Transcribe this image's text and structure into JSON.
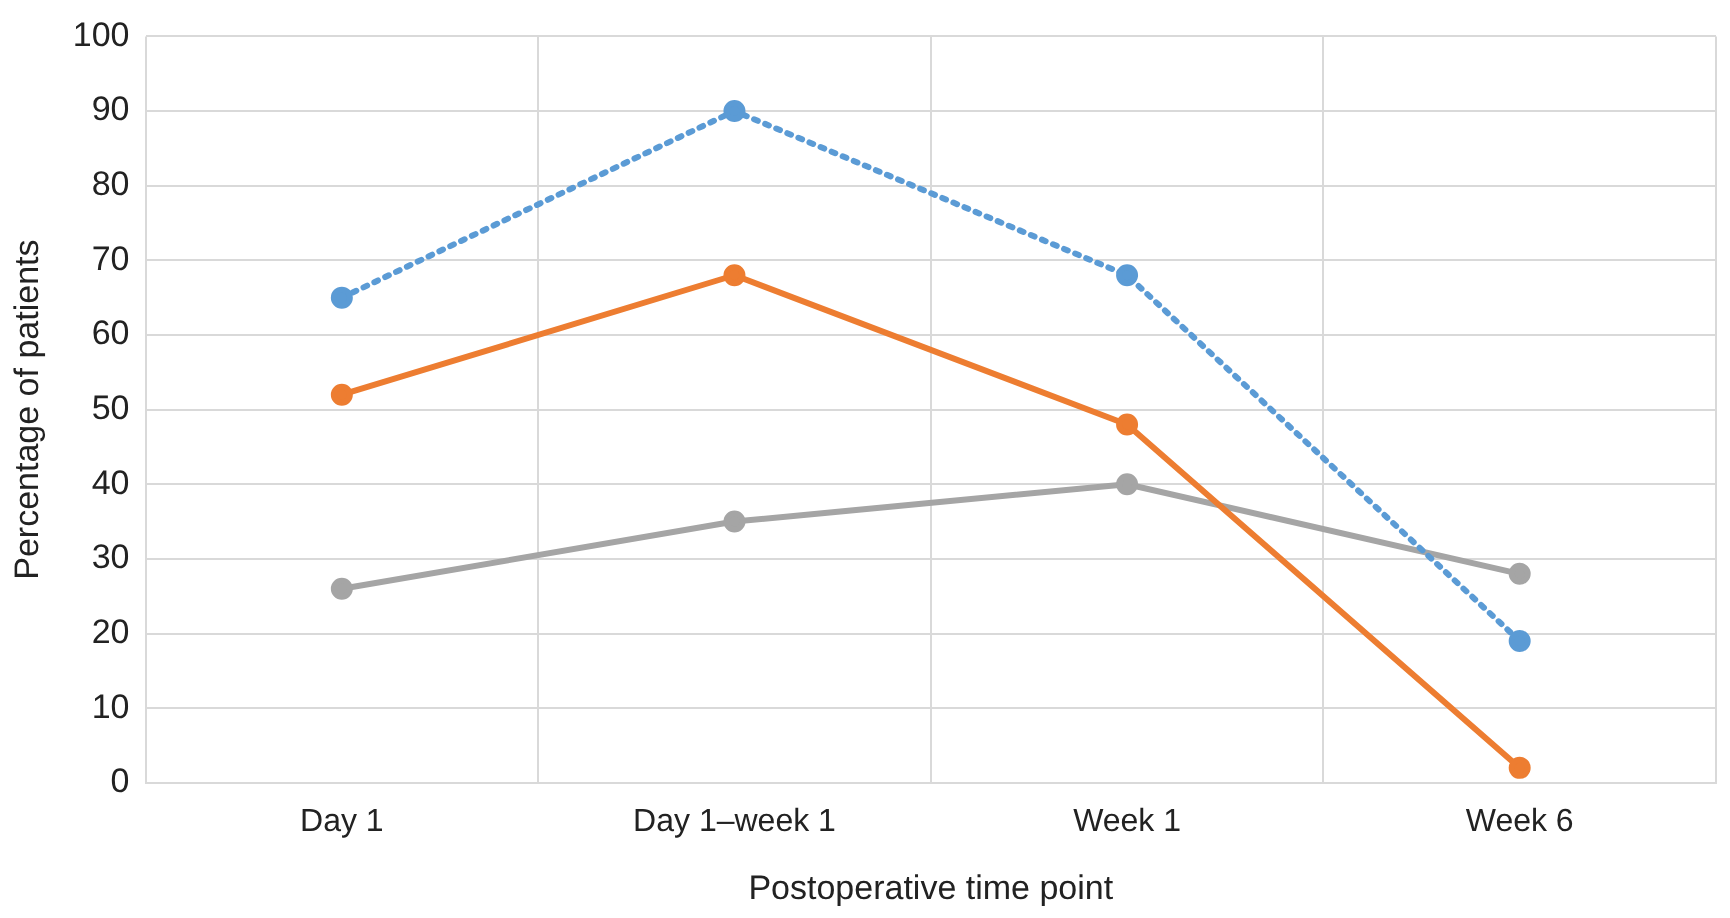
{
  "chart_data": {
    "type": "line",
    "xlabel": "Postoperative time point",
    "ylabel": "Percentage of patients",
    "categories": [
      "Day 1",
      "Day 1–week 1",
      "Week 1",
      "Week 6"
    ],
    "series": [
      {
        "color": "#5b9bd5",
        "values": [
          65,
          90,
          68,
          19
        ],
        "line_style": "dotted"
      },
      {
        "color": "#ed7d31",
        "values": [
          52,
          68,
          48,
          2
        ],
        "line_style": "solid"
      },
      {
        "color": "#a5a5a5",
        "values": [
          26,
          35,
          40,
          28
        ],
        "line_style": "solid"
      }
    ],
    "ylim": [
      0,
      100
    ],
    "yticks": [
      0,
      10,
      20,
      30,
      40,
      50,
      60,
      70,
      80,
      90,
      100
    ],
    "grid": true,
    "legend": false,
    "marker": "circle"
  }
}
